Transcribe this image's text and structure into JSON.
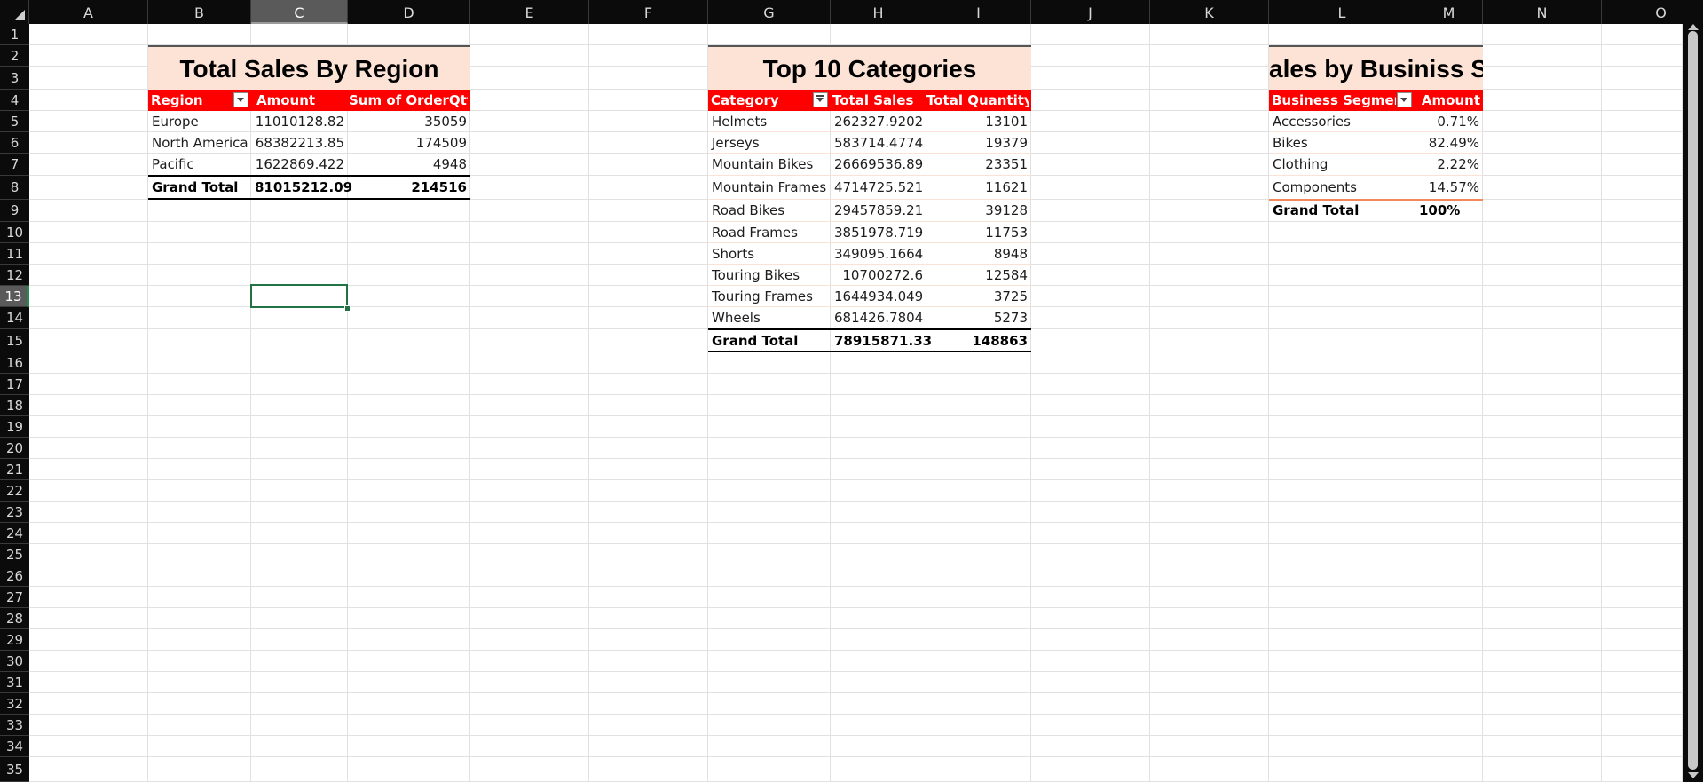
{
  "columns": [
    "A",
    "B",
    "C",
    "D",
    "E",
    "F",
    "G",
    "H",
    "I",
    "J",
    "K",
    "L",
    "M",
    "N",
    "O"
  ],
  "rows": [
    "1",
    "2",
    "3",
    "4",
    "5",
    "6",
    "7",
    "8",
    "9",
    "10",
    "11",
    "12",
    "13",
    "14",
    "15",
    "16",
    "17",
    "18",
    "19",
    "20",
    "21",
    "22",
    "23",
    "24",
    "25",
    "26",
    "27",
    "28",
    "29",
    "30",
    "31",
    "32",
    "33",
    "34",
    "35"
  ],
  "selected_cell": "C13",
  "region_pivot": {
    "title": "Total Sales By Region",
    "headers": [
      "Region",
      "Amount",
      "Sum of OrderQty"
    ],
    "rows": [
      {
        "label": "Europe",
        "amount": "11010128.82",
        "qty": "35059"
      },
      {
        "label": "North America",
        "amount": "68382213.85",
        "qty": "174509"
      },
      {
        "label": "Pacific",
        "amount": "1622869.422",
        "qty": "4948"
      }
    ],
    "total": {
      "label": "Grand Total",
      "amount": "81015212.09",
      "qty": "214516"
    }
  },
  "category_pivot": {
    "title": "Top 10 Categories",
    "headers": [
      "Category",
      "Total Sales",
      "Total Quantity"
    ],
    "rows": [
      {
        "label": "Helmets",
        "sales": "262327.9202",
        "qty": "13101"
      },
      {
        "label": "Jerseys",
        "sales": "583714.4774",
        "qty": "19379"
      },
      {
        "label": "Mountain Bikes",
        "sales": "26669536.89",
        "qty": "23351"
      },
      {
        "label": "Mountain Frames",
        "sales": "4714725.521",
        "qty": "11621"
      },
      {
        "label": "Road Bikes",
        "sales": "29457859.21",
        "qty": "39128"
      },
      {
        "label": "Road Frames",
        "sales": "3851978.719",
        "qty": "11753"
      },
      {
        "label": "Shorts",
        "sales": "349095.1664",
        "qty": "8948"
      },
      {
        "label": "Touring Bikes",
        "sales": "10700272.6",
        "qty": "12584"
      },
      {
        "label": "Touring Frames",
        "sales": "1644934.049",
        "qty": "3725"
      },
      {
        "label": "Wheels",
        "sales": "681426.7804",
        "qty": "5273"
      }
    ],
    "total": {
      "label": "Grand Total",
      "sales": "78915871.33",
      "qty": "148863"
    }
  },
  "segment_pivot": {
    "title": "ales by Businiss S",
    "headers": [
      "Business Segment",
      "Amount"
    ],
    "rows": [
      {
        "label": "Accessories",
        "amount": "0.71%"
      },
      {
        "label": "Bikes",
        "amount": "82.49%"
      },
      {
        "label": "Clothing",
        "amount": "2.22%"
      },
      {
        "label": "Components",
        "amount": "14.57%"
      }
    ],
    "total": {
      "label": "Grand Total",
      "amount": "100%"
    }
  },
  "colors": {
    "header_red": "#ff0000",
    "title_fill": "#fde3d6",
    "selection_green": "#217346"
  }
}
